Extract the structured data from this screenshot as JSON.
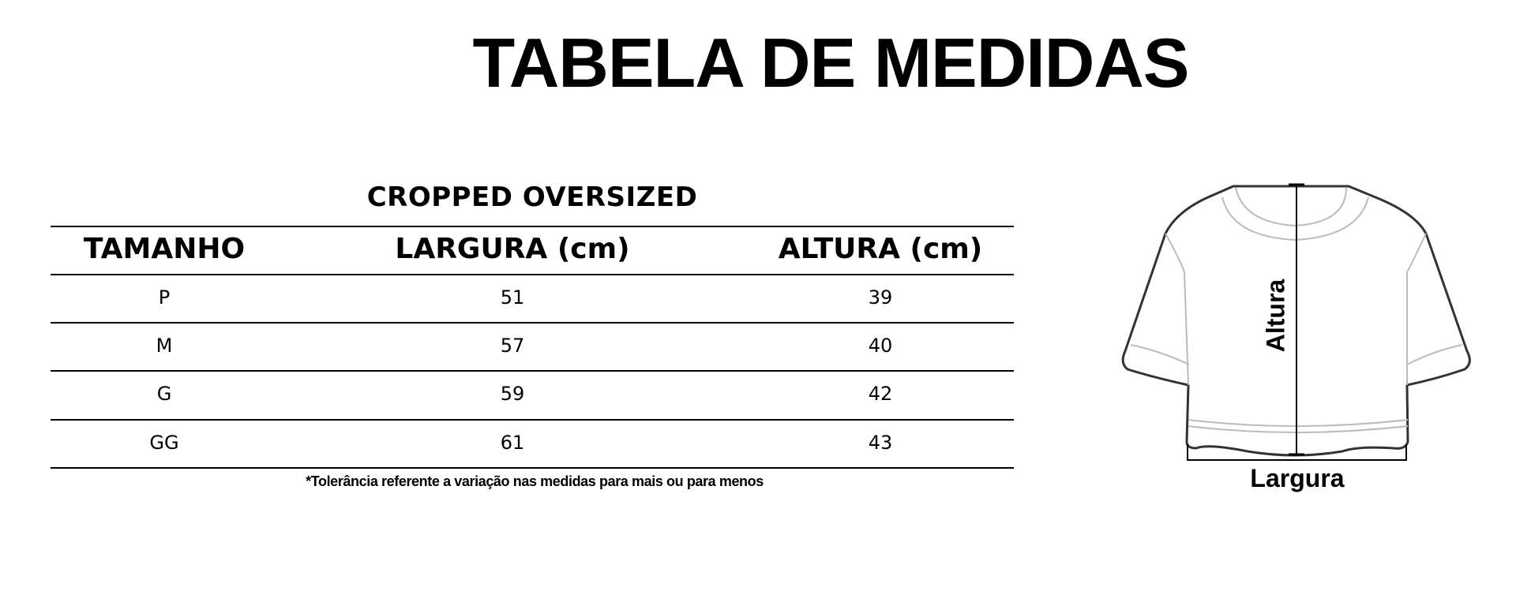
{
  "title": "TABELA DE MEDIDAS",
  "table": {
    "subtitle": "CROPPED OVERSIZED",
    "headers": [
      "TAMANHO",
      "LARGURA (cm)",
      "ALTURA (cm)"
    ],
    "rows": [
      [
        "P",
        "51",
        "39"
      ],
      [
        "M",
        "57",
        "40"
      ],
      [
        "G",
        "59",
        "42"
      ],
      [
        "GG",
        "61",
        "43"
      ]
    ],
    "footnote": "*Tolerância referente a variação nas medidas para mais ou para menos"
  },
  "diagram": {
    "height_label": "Altura",
    "width_label": "Largura"
  }
}
